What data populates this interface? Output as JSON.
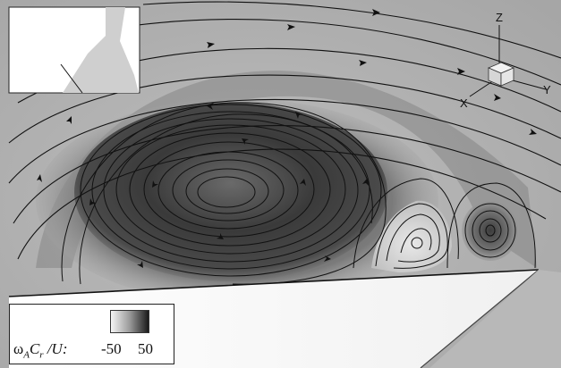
{
  "legend": {
    "symbol": "ω",
    "subscript": "A",
    "text_c": "C",
    "subscript_r": "r",
    "text_tail": " /U:",
    "min_label": "-50",
    "max_label": "50",
    "gradient_colors": [
      "#f5f5f5",
      "#9a9a9a",
      "#1a1a1a"
    ]
  },
  "axes": {
    "z": "Z",
    "y": "Y",
    "x": "X"
  },
  "colors": {
    "background": "#a9a9a9",
    "vortex_dark": "#2a2a2a",
    "wing": "#ffffff",
    "streamline": "#111111"
  }
}
